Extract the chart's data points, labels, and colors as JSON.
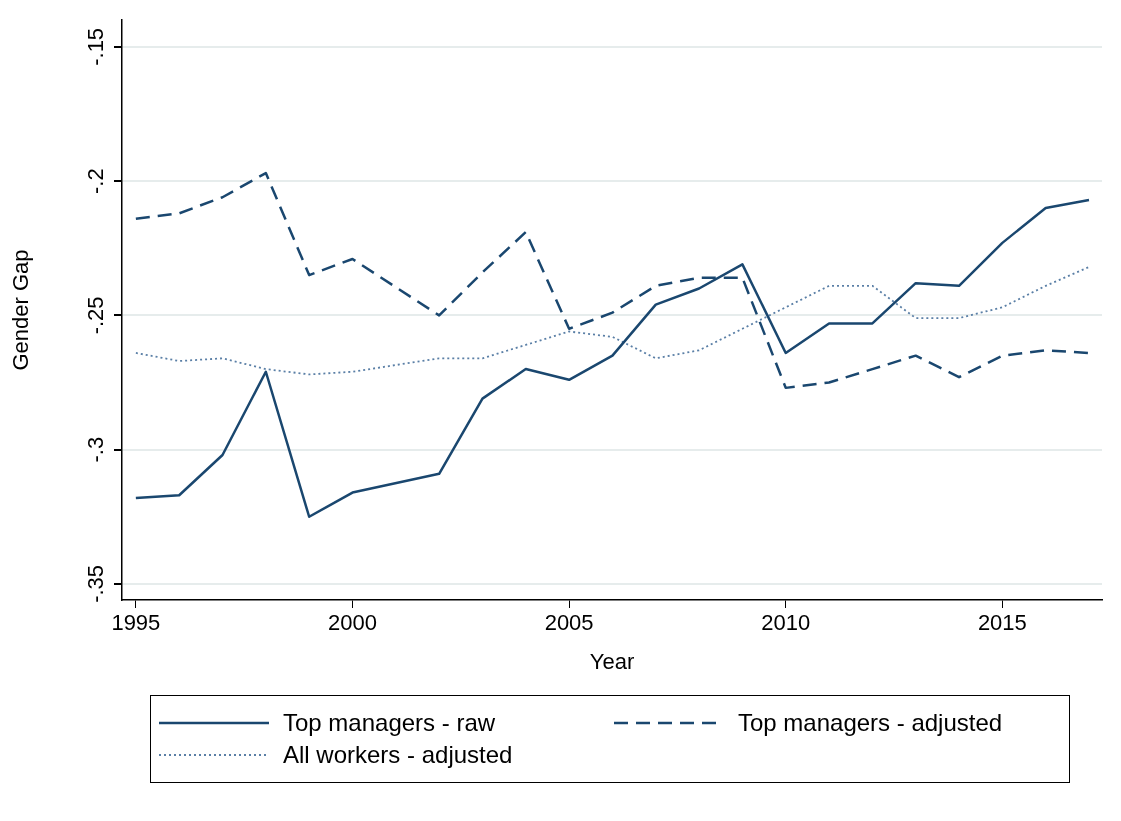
{
  "chart_data": {
    "type": "line",
    "xlabel": "Year",
    "ylabel": "Gender Gap",
    "xlim": [
      1994.68,
      2017.3
    ],
    "xticks": [
      1995,
      2000,
      2005,
      2010,
      2015
    ],
    "ylim": [
      -0.356,
      -0.14
    ],
    "yticks": [
      {
        "value": -0.15,
        "label": "-.15"
      },
      {
        "value": -0.2,
        "label": "-.2"
      },
      {
        "value": -0.25,
        "label": "-.25"
      },
      {
        "value": -0.3,
        "label": "-.3"
      },
      {
        "value": -0.35,
        "label": "-.35"
      }
    ],
    "grid": "y",
    "legend": "bottom",
    "marker": "none",
    "series": [
      {
        "name": "Top managers - raw",
        "color": "#1a476f",
        "line_style": "solid",
        "x": [
          1995,
          1996,
          1997,
          1998,
          1999,
          2000,
          2002,
          2003,
          2004,
          2005,
          2006,
          2007,
          2008,
          2009,
          2010,
          2011,
          2012,
          2013,
          2014,
          2015,
          2016,
          2017
        ],
        "values": [
          -0.318,
          -0.317,
          -0.302,
          -0.271,
          -0.325,
          -0.316,
          -0.309,
          -0.281,
          -0.27,
          -0.274,
          -0.265,
          -0.246,
          -0.24,
          -0.231,
          -0.264,
          -0.253,
          -0.253,
          -0.238,
          -0.239,
          -0.223,
          -0.21,
          -0.207
        ]
      },
      {
        "name": "Top managers - adjusted",
        "color": "#1a476f",
        "line_style": "dashed",
        "x": [
          1995,
          1996,
          1997,
          1998,
          1999,
          2000,
          2002,
          2003,
          2004,
          2005,
          2006,
          2007,
          2008,
          2009,
          2010,
          2011,
          2012,
          2013,
          2014,
          2015,
          2016,
          2017
        ],
        "values": [
          -0.214,
          -0.212,
          -0.206,
          -0.197,
          -0.235,
          -0.229,
          -0.25,
          -0.234,
          -0.219,
          -0.255,
          -0.249,
          -0.239,
          -0.236,
          -0.236,
          -0.277,
          -0.275,
          -0.27,
          -0.265,
          -0.273,
          -0.265,
          -0.263,
          -0.264
        ]
      },
      {
        "name": "All workers - adjusted",
        "color": "#5a7fa6",
        "line_style": "dotted",
        "x": [
          1995,
          1996,
          1997,
          1998,
          1999,
          2000,
          2002,
          2003,
          2004,
          2005,
          2006,
          2007,
          2008,
          2009,
          2010,
          2011,
          2012,
          2013,
          2014,
          2015,
          2016,
          2017
        ],
        "values": [
          -0.264,
          -0.267,
          -0.266,
          -0.27,
          -0.272,
          -0.271,
          -0.266,
          -0.266,
          -0.261,
          -0.256,
          -0.258,
          -0.266,
          -0.263,
          -0.255,
          -0.247,
          -0.239,
          -0.239,
          -0.251,
          -0.251,
          -0.247,
          -0.239,
          -0.232
        ]
      }
    ]
  }
}
